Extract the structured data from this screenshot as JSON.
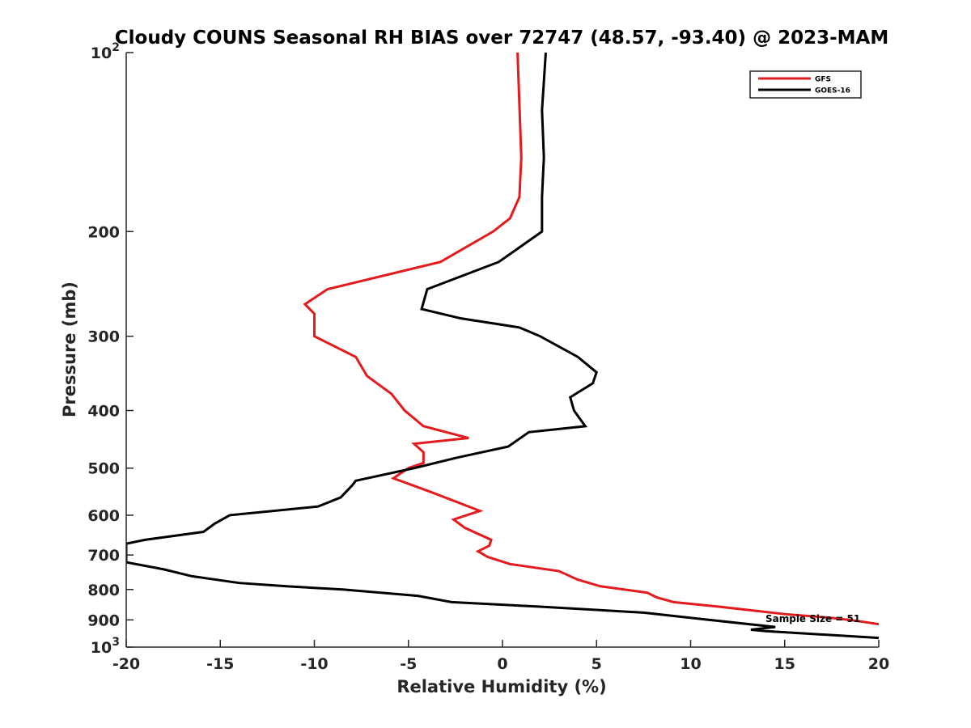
{
  "chart_data": {
    "type": "line",
    "title": "Cloudy COUNS Seasonal RH BIAS over 72747 (48.57, -93.40) @ 2023-MAM",
    "xlabel": "Relative Humidity (%)",
    "ylabel": "Pressure (mb)",
    "xlim": [
      -20,
      20
    ],
    "ylim": [
      100,
      1000
    ],
    "y_scale": "log",
    "y_reversed": true,
    "grid": false,
    "legend_placement": "top-right",
    "x_ticks": [
      -20,
      -15,
      -10,
      -5,
      0,
      5,
      10,
      15,
      20
    ],
    "x_tick_labels": [
      "-20",
      "-15",
      "-10",
      "-5",
      "0",
      "5",
      "10",
      "15",
      "20"
    ],
    "y_ticks": [
      100,
      200,
      300,
      400,
      500,
      600,
      700,
      800,
      900,
      1000
    ],
    "y_tick_labels": [
      {
        "base": "10",
        "sup": "2"
      },
      {
        "base": "200",
        "sup": ""
      },
      {
        "base": "300",
        "sup": ""
      },
      {
        "base": "400",
        "sup": ""
      },
      {
        "base": "500",
        "sup": ""
      },
      {
        "base": "600",
        "sup": ""
      },
      {
        "base": "700",
        "sup": ""
      },
      {
        "base": "800",
        "sup": ""
      },
      {
        "base": "900",
        "sup": ""
      },
      {
        "base": "10",
        "sup": "3"
      }
    ],
    "series": [
      {
        "name": "GFS",
        "color": "#e41a1c",
        "points": [
          [
            0.8,
            100
          ],
          [
            1.0,
            150
          ],
          [
            0.9,
            175
          ],
          [
            0.4,
            190
          ],
          [
            -0.5,
            200
          ],
          [
            -3.3,
            225
          ],
          [
            -9.3,
            250
          ],
          [
            -10.5,
            265
          ],
          [
            -10.0,
            275
          ],
          [
            -10.0,
            300
          ],
          [
            -7.8,
            325
          ],
          [
            -7.2,
            350
          ],
          [
            -5.9,
            375
          ],
          [
            -5.2,
            400
          ],
          [
            -4.2,
            425
          ],
          [
            -1.8,
            445
          ],
          [
            -4.7,
            455
          ],
          [
            -4.2,
            470
          ],
          [
            -4.2,
            490
          ],
          [
            -5.0,
            500
          ],
          [
            -5.8,
            520
          ],
          [
            -3.7,
            550
          ],
          [
            -1.2,
            590
          ],
          [
            -2.6,
            610
          ],
          [
            -2.0,
            630
          ],
          [
            -0.6,
            660
          ],
          [
            -0.7,
            675
          ],
          [
            -1.3,
            690
          ],
          [
            -0.8,
            705
          ],
          [
            0.4,
            725
          ],
          [
            3.0,
            745
          ],
          [
            4.0,
            770
          ],
          [
            5.2,
            790
          ],
          [
            7.7,
            810
          ],
          [
            8.2,
            825
          ],
          [
            9.1,
            840
          ],
          [
            11.5,
            855
          ],
          [
            15.0,
            880
          ],
          [
            17.5,
            893
          ],
          [
            18.8,
            903
          ],
          [
            20.0,
            915
          ]
        ]
      },
      {
        "name": "GOES-16",
        "color": "#000000",
        "points": [
          [
            2.3,
            100
          ],
          [
            2.1,
            125
          ],
          [
            2.2,
            150
          ],
          [
            2.1,
            175
          ],
          [
            2.1,
            200
          ],
          [
            -0.2,
            225
          ],
          [
            -4.0,
            250
          ],
          [
            -4.3,
            270
          ],
          [
            -2.2,
            280
          ],
          [
            0.9,
            290
          ],
          [
            2.0,
            300
          ],
          [
            4.0,
            325
          ],
          [
            5.0,
            345
          ],
          [
            4.8,
            360
          ],
          [
            3.6,
            380
          ],
          [
            3.8,
            400
          ],
          [
            4.4,
            425
          ],
          [
            1.4,
            435
          ],
          [
            0.3,
            460
          ],
          [
            -2.4,
            480
          ],
          [
            -4.7,
            500
          ],
          [
            -7.8,
            525
          ],
          [
            -8.0,
            535
          ],
          [
            -8.6,
            560
          ],
          [
            -9.8,
            580
          ],
          [
            -14.5,
            600
          ],
          [
            -15.3,
            620
          ],
          [
            -15.9,
            640
          ],
          [
            -19.0,
            660
          ],
          [
            -20.0,
            670
          ],
          [
            -20.0,
            720
          ],
          [
            -18.0,
            740
          ],
          [
            -16.5,
            760
          ],
          [
            -14.0,
            780
          ],
          [
            -11.5,
            790
          ],
          [
            -8.5,
            800
          ],
          [
            -4.5,
            820
          ],
          [
            -2.7,
            840
          ],
          [
            2.0,
            855
          ],
          [
            7.5,
            875
          ],
          [
            11.0,
            900
          ],
          [
            14.5,
            925
          ],
          [
            13.2,
            935
          ],
          [
            14.0,
            940
          ],
          [
            20.0,
            965
          ]
        ]
      }
    ],
    "annotations": [
      {
        "text": "Sample Size = 51",
        "x": 16.5,
        "y": 908
      }
    ]
  }
}
